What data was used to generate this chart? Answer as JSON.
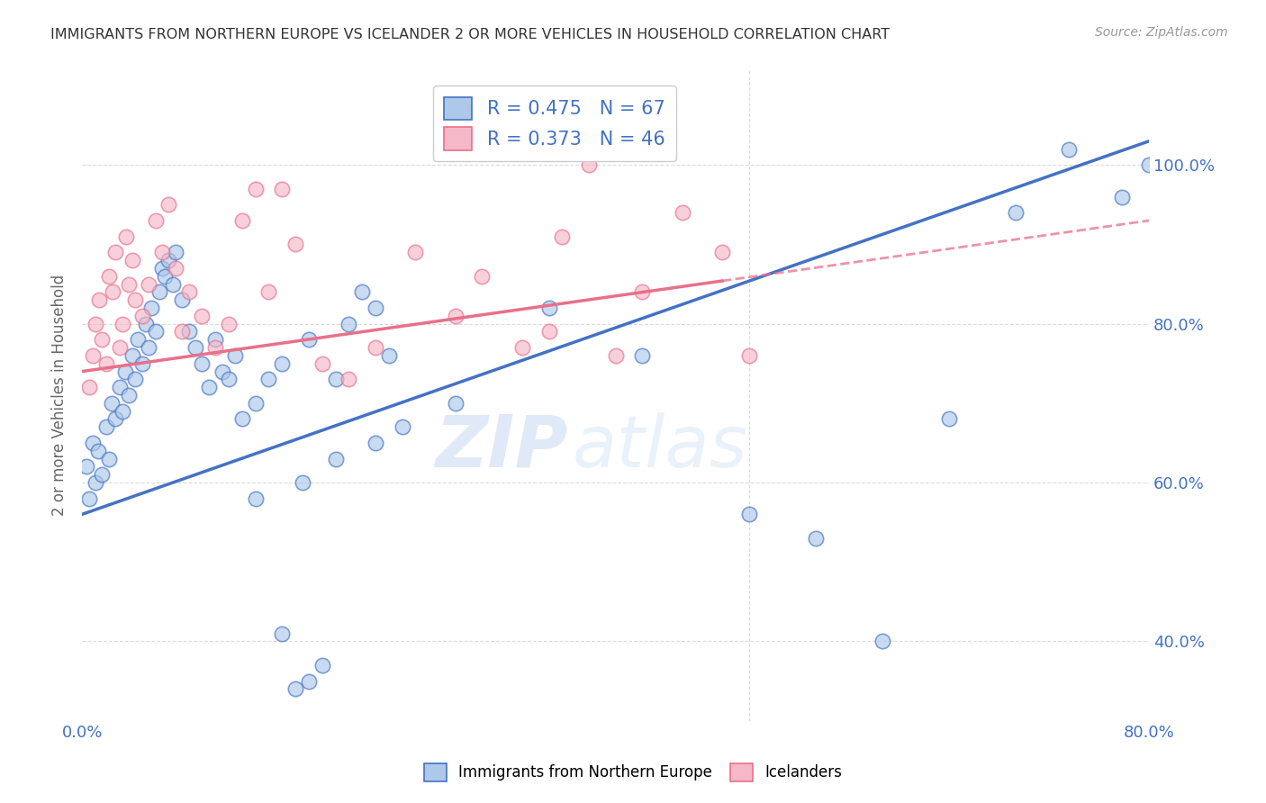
{
  "title": "IMMIGRANTS FROM NORTHERN EUROPE VS ICELANDER 2 OR MORE VEHICLES IN HOUSEHOLD CORRELATION CHART",
  "source": "Source: ZipAtlas.com",
  "ylabel": "2 or more Vehicles in Household",
  "r_blue": 0.475,
  "n_blue": 67,
  "r_pink": 0.373,
  "n_pink": 46,
  "blue_color": "#adc8e8",
  "pink_color": "#f5b8c8",
  "blue_line_color": "#4472c4",
  "pink_line_color": "#e8708a",
  "watermark_zip": "ZIP",
  "watermark_atlas": "atlas",
  "legend_label_blue": "Immigrants from Northern Europe",
  "legend_label_pink": "Icelanders",
  "xlim": [
    0,
    80
  ],
  "ylim": [
    30,
    112
  ],
  "yticks": [
    40,
    60,
    80,
    100
  ],
  "ytick_labels": [
    "40.0%",
    "60.0%",
    "80.0%",
    "100.0%"
  ],
  "xticks": [
    0,
    10,
    20,
    30,
    40,
    50,
    60,
    70,
    80
  ],
  "xtick_labels": [
    "0.0%",
    "",
    "",
    "",
    "",
    "",
    "",
    "",
    "80.0%"
  ],
  "grid_color": "#d8d8d8",
  "background_color": "#ffffff",
  "title_color": "#333333",
  "axis_label_color": "#666666",
  "tick_color": "#4472c4",
  "blue_trend_x0": 0,
  "blue_trend_y0": 56,
  "blue_trend_x1": 80,
  "blue_trend_y1": 103,
  "pink_trend_x0": 0,
  "pink_trend_y0": 74,
  "pink_trend_x1": 80,
  "pink_trend_y1": 93,
  "pink_solid_end_x": 48,
  "blue_scatter_x": [
    0.3,
    0.5,
    0.8,
    1.0,
    1.2,
    1.5,
    1.8,
    2.0,
    2.2,
    2.5,
    2.8,
    3.0,
    3.2,
    3.5,
    3.8,
    4.0,
    4.2,
    4.5,
    4.8,
    5.0,
    5.2,
    5.5,
    5.8,
    6.0,
    6.2,
    6.5,
    6.8,
    7.0,
    7.5,
    8.0,
    8.5,
    9.0,
    9.5,
    10.0,
    10.5,
    11.0,
    11.5,
    12.0,
    13.0,
    14.0,
    15.0,
    16.0,
    17.0,
    18.0,
    19.0,
    20.0,
    21.0,
    22.0,
    23.0,
    24.0,
    15.0,
    17.0,
    19.0,
    22.0,
    13.0,
    16.5,
    28.0,
    35.0,
    42.0,
    50.0,
    55.0,
    60.0,
    65.0,
    70.0,
    74.0,
    78.0,
    80.0
  ],
  "blue_scatter_y": [
    62,
    58,
    65,
    60,
    64,
    61,
    67,
    63,
    70,
    68,
    72,
    69,
    74,
    71,
    76,
    73,
    78,
    75,
    80,
    77,
    82,
    79,
    84,
    87,
    86,
    88,
    85,
    89,
    83,
    79,
    77,
    75,
    72,
    78,
    74,
    73,
    76,
    68,
    70,
    73,
    41,
    34,
    35,
    37,
    73,
    80,
    84,
    82,
    76,
    67,
    75,
    78,
    63,
    65,
    58,
    60,
    70,
    82,
    76,
    56,
    53,
    40,
    68,
    94,
    102,
    96,
    100
  ],
  "pink_scatter_x": [
    0.5,
    0.8,
    1.0,
    1.3,
    1.5,
    1.8,
    2.0,
    2.3,
    2.5,
    2.8,
    3.0,
    3.3,
    3.5,
    3.8,
    4.0,
    4.5,
    5.0,
    5.5,
    6.0,
    6.5,
    7.0,
    7.5,
    8.0,
    9.0,
    10.0,
    11.0,
    12.0,
    14.0,
    15.0,
    16.0,
    18.0,
    22.0,
    25.0,
    28.0,
    30.0,
    35.0,
    38.0,
    40.0,
    42.0,
    45.0,
    48.0,
    13.0,
    20.0,
    33.0,
    36.0,
    50.0
  ],
  "pink_scatter_y": [
    72,
    76,
    80,
    83,
    78,
    75,
    86,
    84,
    89,
    77,
    80,
    91,
    85,
    88,
    83,
    81,
    85,
    93,
    89,
    95,
    87,
    79,
    84,
    81,
    77,
    80,
    93,
    84,
    97,
    90,
    75,
    77,
    89,
    81,
    86,
    79,
    100,
    76,
    84,
    94,
    89,
    97,
    73,
    77,
    91,
    76
  ]
}
